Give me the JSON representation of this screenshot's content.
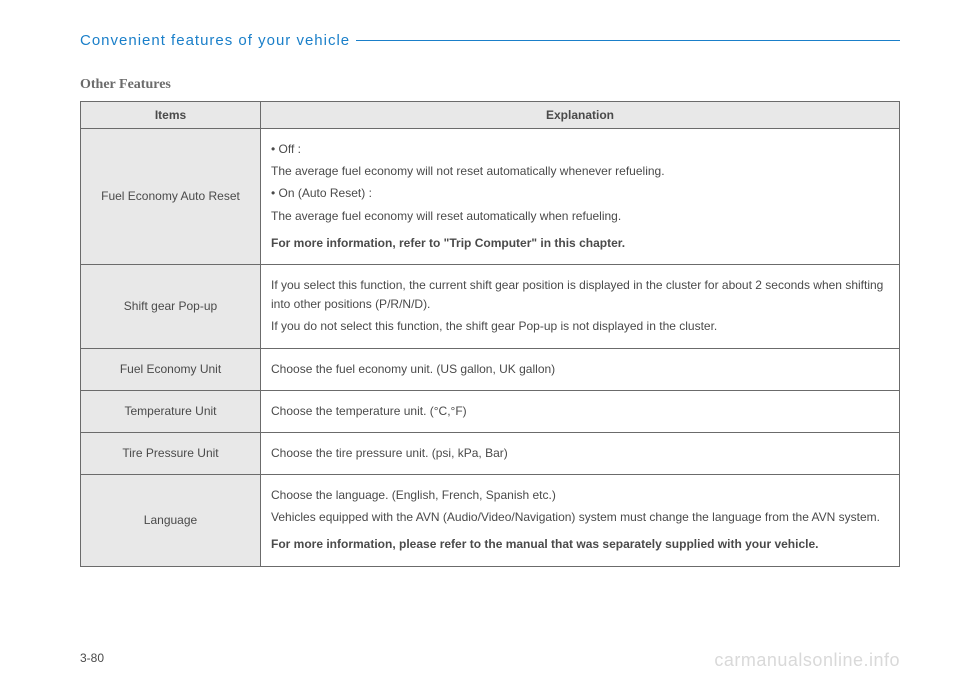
{
  "header": {
    "section_title": "Convenient features of your vehicle"
  },
  "subheading": "Other Features",
  "table": {
    "columns": [
      "Items",
      "Explanation"
    ],
    "col_widths": [
      "180px",
      "auto"
    ],
    "header_bg": "#e8e8e8",
    "item_bg": "#e8e8e8",
    "border_color": "#6b6b6b",
    "rows": [
      {
        "item": "Fuel Economy Auto Reset",
        "lines": [
          {
            "text": "• Off :",
            "bold": false
          },
          {
            "text": "The average fuel economy will not reset automatically whenever refueling.",
            "bold": false
          },
          {
            "text": "• On (Auto Reset) :",
            "bold": false
          },
          {
            "text": "The average fuel economy will reset automatically when refueling.",
            "bold": false
          },
          {
            "text": "For more information, refer to \"Trip Computer\" in this chapter.",
            "bold": true
          }
        ]
      },
      {
        "item": "Shift gear Pop-up",
        "lines": [
          {
            "text": "If you select this function, the current shift gear position is displayed in the cluster for about 2 seconds when shifting into other positions (P/R/N/D).",
            "bold": false
          },
          {
            "text": "If you do not select this function, the shift gear Pop-up is not displayed in the cluster.",
            "bold": false
          }
        ]
      },
      {
        "item": "Fuel Economy Unit",
        "lines": [
          {
            "text": "Choose the fuel economy unit. (US gallon, UK gallon)",
            "bold": false
          }
        ]
      },
      {
        "item": "Temperature Unit",
        "lines": [
          {
            "text": "Choose the temperature unit. (°C,°F)",
            "bold": false
          }
        ]
      },
      {
        "item": "Tire Pressure Unit",
        "lines": [
          {
            "text": "Choose the tire pressure unit. (psi, kPa, Bar)",
            "bold": false
          }
        ]
      },
      {
        "item": "Language",
        "lines": [
          {
            "text": "Choose the language. (English, French, Spanish etc.)",
            "bold": false
          },
          {
            "text": "Vehicles equipped with the AVN (Audio/Video/Navigation) system must change the language from the AVN system.",
            "bold": false
          },
          {
            "text": "For more information, please refer to the manual that was separately supplied with your vehicle.",
            "bold": true
          }
        ]
      }
    ]
  },
  "page_number": "3-80",
  "watermark": "carmanualsonline.info",
  "colors": {
    "accent": "#1a7fc9",
    "text": "#4a4a4a",
    "subheading": "#6b6b6b",
    "watermark": "#d9d9d9"
  }
}
